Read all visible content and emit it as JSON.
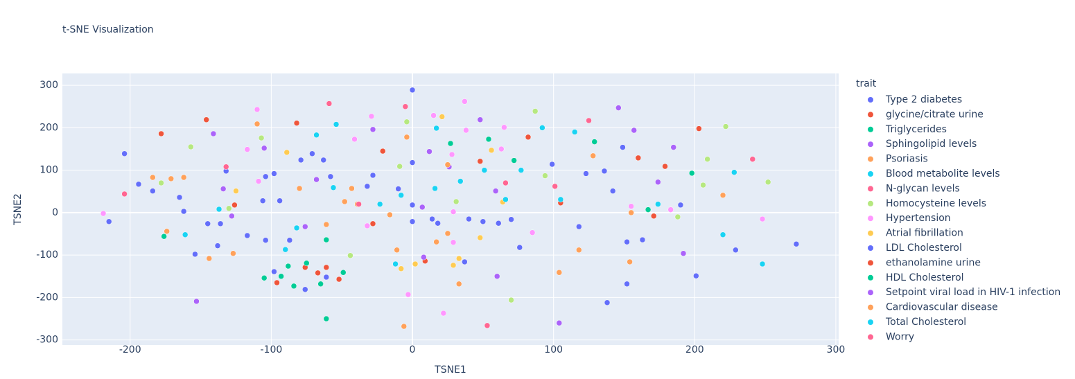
{
  "chart_data": {
    "type": "scatter",
    "title": "t-SNE Visualization",
    "x_label": "TSNE1",
    "y_label": "TSNE2",
    "legend_title": "trait",
    "xlim": [
      -248,
      302
    ],
    "ylim": [
      -312,
      328
    ],
    "xticks": [
      -200,
      -100,
      0,
      100,
      200,
      300
    ],
    "yticks": [
      -300,
      -200,
      -100,
      0,
      100,
      200,
      300
    ],
    "grid": true,
    "series": [
      {
        "name": "Type 2 diabetes",
        "color": "#636efa",
        "x": [
          0,
          -204,
          -194,
          -184,
          -215,
          -165,
          -162,
          -132,
          -145,
          -136,
          -138,
          -154,
          -117,
          -106,
          -104,
          -98,
          -94,
          -79,
          -71,
          -63,
          -58,
          -32,
          -28,
          -10,
          0,
          0,
          0
        ],
        "y": [
          289,
          139,
          67,
          51,
          -21,
          36,
          3,
          98,
          -26,
          -26,
          -78,
          -98,
          -54,
          28,
          85,
          92,
          28,
          124,
          139,
          124,
          85,
          62,
          88,
          56,
          118,
          18,
          -21
        ]
      },
      {
        "name": "glycine/citrate urine",
        "color": "#EF553B",
        "x": [
          -146,
          -178,
          -82,
          -21,
          48,
          82,
          160,
          179,
          203,
          105,
          171
        ],
        "y": [
          219,
          186,
          211,
          145,
          121,
          178,
          129,
          109,
          198,
          23,
          -8
        ]
      },
      {
        "name": "Triglycerides",
        "color": "#00cc96",
        "x": [
          -176,
          27,
          54,
          72,
          129,
          167,
          198
        ],
        "y": [
          -56,
          163,
          173,
          123,
          167,
          7,
          93
        ]
      },
      {
        "name": "Sphingolipid levels",
        "color": "#ab63fa",
        "x": [
          -141,
          -105,
          -134,
          -128,
          -76,
          -68,
          -28,
          12,
          7,
          48,
          59
        ],
        "y": [
          186,
          152,
          56,
          -8,
          -33,
          78,
          196,
          144,
          13,
          219,
          51
        ]
      },
      {
        "name": "Psoriasis",
        "color": "#FFA15A",
        "x": [
          -184,
          -171,
          -162,
          -174,
          -127,
          -144,
          -110,
          -80,
          -61,
          -48,
          -39,
          -43,
          -4
        ],
        "y": [
          83,
          80,
          83,
          -44,
          -96,
          -108,
          209,
          57,
          -28,
          26,
          20,
          57,
          178
        ]
      },
      {
        "name": "Blood metabolite levels",
        "color": "#19d3f3",
        "x": [
          -68,
          -54,
          17,
          92,
          115,
          77,
          51,
          34,
          16,
          -56,
          -137,
          -161
        ],
        "y": [
          183,
          208,
          199,
          200,
          190,
          100,
          100,
          74,
          57,
          59,
          8,
          -52
        ]
      },
      {
        "name": "N-glycan levels",
        "color": "#FF6692",
        "x": [
          -204,
          -132,
          -59,
          -5,
          66
        ],
        "y": [
          44,
          108,
          257,
          250,
          70
        ]
      },
      {
        "name": "Homocysteine levels",
        "color": "#B6E880",
        "x": [
          -157,
          -178,
          -130,
          -107,
          -4,
          -9,
          31,
          94,
          209,
          222,
          206,
          252,
          188,
          70,
          -44,
          87
        ],
        "y": [
          155,
          70,
          10,
          176,
          214,
          109,
          26,
          87,
          126,
          203,
          65,
          72,
          -10,
          -206,
          -101,
          239
        ]
      },
      {
        "name": "Hypertension",
        "color": "#FF97FF",
        "x": [
          -219,
          -110,
          -117,
          -109,
          -29,
          -41,
          15,
          38,
          65,
          63,
          28,
          29,
          -32,
          29,
          85,
          22,
          -3,
          155,
          183,
          248,
          37
        ],
        "y": [
          -2,
          243,
          149,
          74,
          227,
          173,
          229,
          194,
          201,
          150,
          137,
          2,
          -31,
          -70,
          -47,
          -237,
          -193,
          15,
          7,
          -15,
          262
        ]
      },
      {
        "name": "Atrial fibrillation",
        "color": "#FECB52",
        "x": [
          -125,
          -89,
          21,
          25,
          56,
          64,
          48,
          33,
          -8,
          2,
          29
        ],
        "y": [
          51,
          142,
          226,
          113,
          147,
          25,
          -59,
          -108,
          -132,
          -121,
          -124
        ]
      },
      {
        "name": "LDL Cholesterol",
        "color": "#636efa",
        "x": [
          14,
          18,
          40,
          50,
          61,
          70,
          76,
          99,
          118,
          123,
          136,
          142,
          149,
          152,
          163,
          190,
          201,
          229,
          272,
          152,
          138,
          37,
          -61,
          -76,
          -98,
          -87,
          -104
        ],
        "y": [
          -15,
          -25,
          -15,
          -21,
          -25,
          -16,
          -82,
          114,
          -33,
          92,
          98,
          51,
          154,
          -69,
          -64,
          18,
          -149,
          -88,
          -74,
          -168,
          -212,
          -116,
          -152,
          -181,
          -139,
          -65,
          -65
        ]
      },
      {
        "name": "ethanolamine urine",
        "color": "#EF553B",
        "x": [
          -126,
          -28,
          9,
          -76,
          -61,
          -52,
          -96,
          -67
        ],
        "y": [
          18,
          -26,
          -114,
          -129,
          -129,
          -157,
          -165,
          -142
        ]
      },
      {
        "name": "HDL Cholesterol",
        "color": "#00cc96",
        "x": [
          -61,
          -61,
          -105,
          -88,
          -84,
          -75,
          -65,
          -49,
          -93
        ],
        "y": [
          -250,
          -64,
          -154,
          -126,
          -173,
          -119,
          -168,
          -141,
          -150
        ]
      },
      {
        "name": "Setpoint viral load in HIV-1 infection",
        "color": "#ab63fa",
        "x": [
          146,
          157,
          185,
          174,
          192,
          104,
          60,
          -153,
          8,
          26
        ],
        "y": [
          247,
          194,
          154,
          72,
          -96,
          -260,
          -150,
          -209,
          -105,
          108
        ]
      },
      {
        "name": "Cardiovascular disease",
        "color": "#FFA15A",
        "x": [
          25,
          128,
          220,
          155,
          154,
          118,
          104,
          17,
          25,
          33,
          -6,
          -11,
          -16
        ],
        "y": [
          113,
          134,
          41,
          0,
          -116,
          -88,
          -141,
          -69,
          -49,
          -168,
          -268,
          -88,
          -5
        ]
      },
      {
        "name": "Total Cholesterol",
        "color": "#19d3f3",
        "x": [
          -90,
          -82,
          -23,
          -8,
          105,
          66,
          174,
          228,
          220,
          248,
          -12
        ],
        "y": [
          -87,
          -36,
          20,
          41,
          31,
          31,
          20,
          95,
          -52,
          -121,
          -121
        ]
      },
      {
        "name": "Worry",
        "color": "#FF6692",
        "x": [
          101,
          125,
          241,
          53,
          -38
        ],
        "y": [
          62,
          217,
          126,
          -266,
          20
        ]
      }
    ]
  }
}
